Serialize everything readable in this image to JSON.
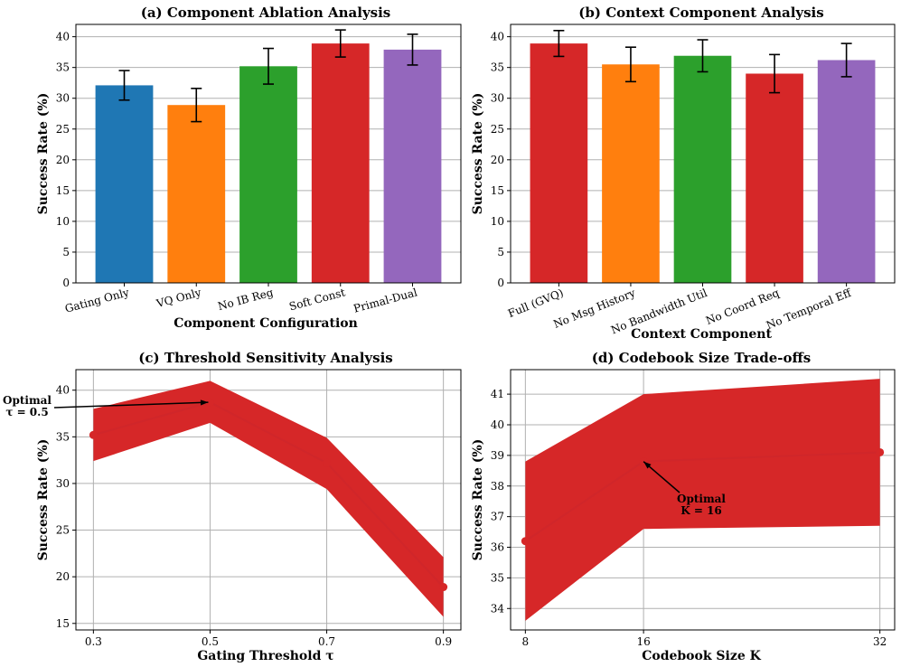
{
  "chart_data": [
    {
      "type": "bar",
      "title": "(a) Component Ablation Analysis",
      "xlabel": "Component Configuration",
      "ylabel": "Success Rate (%)",
      "ylim": [
        0,
        42
      ],
      "yticks": [
        0,
        5,
        10,
        15,
        20,
        25,
        30,
        35,
        40
      ],
      "categories": [
        "Gating Only",
        "VQ Only",
        "No IB Reg",
        "Soft Const",
        "Primal-Dual"
      ],
      "values": [
        32.1,
        28.9,
        35.2,
        38.9,
        37.9
      ],
      "errors": [
        2.4,
        2.7,
        2.9,
        2.2,
        2.5
      ],
      "colors": [
        "#1f77b4",
        "#ff7f0e",
        "#2ca02c",
        "#d62728",
        "#9467bd"
      ],
      "grid": "horizontal"
    },
    {
      "type": "bar",
      "title": "(b) Context Component Analysis",
      "xlabel": "Context Component",
      "ylabel": "Success Rate (%)",
      "ylim": [
        0,
        42
      ],
      "yticks": [
        0,
        5,
        10,
        15,
        20,
        25,
        30,
        35,
        40
      ],
      "categories": [
        "Full (GVQ)",
        "No Msg History",
        "No Bandwidth Util",
        "No Coord Req",
        "No Temporal Eff"
      ],
      "values": [
        38.9,
        35.5,
        36.9,
        34.0,
        36.2
      ],
      "errors": [
        2.1,
        2.8,
        2.6,
        3.1,
        2.7
      ],
      "colors": [
        "#d62728",
        "#ff7f0e",
        "#2ca02c",
        "#d62728",
        "#9467bd"
      ],
      "grid": "horizontal"
    },
    {
      "type": "line",
      "title": "(c) Threshold Sensitivity Analysis",
      "xlabel": "Gating Threshold τ",
      "ylabel": "Success Rate (%)",
      "xlim": [
        0.27,
        0.93
      ],
      "ylim": [
        14.3,
        42.2
      ],
      "xticks": [
        "0.3",
        "0.5",
        "0.7",
        "0.9"
      ],
      "yticks": [
        15,
        20,
        25,
        30,
        35,
        40
      ],
      "x": [
        0.3,
        0.5,
        0.7,
        0.9
      ],
      "y": [
        35.2,
        38.7,
        32.2,
        18.9
      ],
      "lower": [
        32.4,
        36.5,
        29.4,
        15.7
      ],
      "upper": [
        38.0,
        41.0,
        34.9,
        22.1
      ],
      "color": "#d62728",
      "annotation": {
        "lines": [
          "Optimal",
          "τ = 0.5"
        ],
        "x": 0.5,
        "y": 38.7
      },
      "grid": "both"
    },
    {
      "type": "line",
      "title": "(d) Codebook Size Trade-offs",
      "xlabel": "Codebook Size K",
      "ylabel": "Success Rate (%)",
      "xlim": [
        7.0,
        33.0
      ],
      "ylim": [
        33.3,
        41.8
      ],
      "xticks": [
        "8",
        "16",
        "32"
      ],
      "yticks": [
        34,
        35,
        36,
        37,
        38,
        39,
        40,
        41
      ],
      "x": [
        8,
        16,
        32
      ],
      "y": [
        36.2,
        38.8,
        39.1
      ],
      "lower": [
        33.6,
        36.6,
        36.7
      ],
      "upper": [
        38.8,
        41.0,
        41.5
      ],
      "color": "#d62728",
      "annotation": {
        "lines": [
          "Optimal",
          "K = 16"
        ],
        "x": 16,
        "y": 38.8
      },
      "grid": "both"
    }
  ]
}
